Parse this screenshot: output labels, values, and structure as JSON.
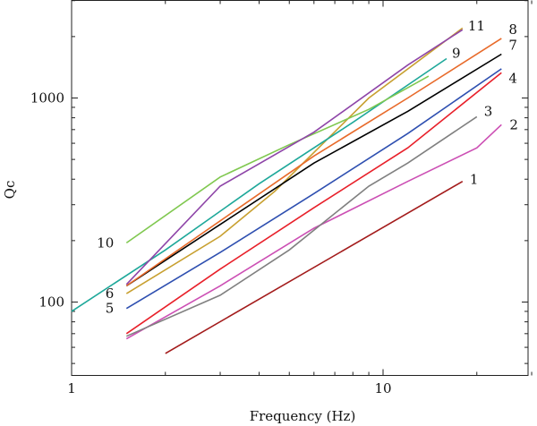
{
  "chart_data": {
    "type": "line",
    "title": "",
    "xlabel": "Frequency (Hz)",
    "ylabel": "Qc",
    "x_scale": "log",
    "y_scale": "log",
    "xlim": [
      1,
      30
    ],
    "ylim": [
      45,
      3000
    ],
    "x_ticks": [
      {
        "value": 1,
        "label": "1"
      },
      {
        "value": 10,
        "label": "10"
      }
    ],
    "y_ticks": [
      {
        "value": 100,
        "label": "100"
      },
      {
        "value": 1000,
        "label": "1000"
      }
    ],
    "grid": false,
    "series": [
      {
        "name": "1",
        "color": "#a31b1b",
        "x": [
          2,
          18
        ],
        "y": [
          56,
          390
        ]
      },
      {
        "name": "2",
        "color": "#cc4fb4",
        "x": [
          1.5,
          3,
          6,
          12,
          20,
          24
        ],
        "y": [
          66,
          120,
          230,
          390,
          570,
          740
        ]
      },
      {
        "name": "3",
        "color": "#808080",
        "x": [
          1.5,
          3,
          5,
          9,
          12,
          20
        ],
        "y": [
          68,
          108,
          180,
          370,
          480,
          810
        ]
      },
      {
        "name": "4",
        "color": "#e8202a",
        "x": [
          1.5,
          3,
          6,
          12,
          24
        ],
        "y": [
          70,
          145,
          290,
          570,
          1330
        ]
      },
      {
        "name": "5",
        "color": "#2e4fb0",
        "x": [
          1.5,
          3,
          6,
          12,
          24
        ],
        "y": [
          93,
          175,
          340,
          670,
          1390
        ]
      },
      {
        "name": "6",
        "color": "#c8a030",
        "x": [
          1.5,
          3,
          4.5,
          9,
          18
        ],
        "y": [
          110,
          210,
          350,
          1000,
          2200
        ]
      },
      {
        "name": "7",
        "color": "#000000",
        "x": [
          1.5,
          3,
          6,
          12,
          24
        ],
        "y": [
          120,
          240,
          480,
          860,
          1640
        ]
      },
      {
        "name": "8",
        "color": "#e86a2a",
        "x": [
          1.5,
          3,
          6,
          12,
          24
        ],
        "y": [
          120,
          250,
          520,
          1000,
          1960
        ]
      },
      {
        "name": "9",
        "color": "#1ea89a",
        "x": [
          1,
          2,
          4,
          8,
          16
        ],
        "y": [
          90,
          180,
          380,
          760,
          1560
        ]
      },
      {
        "name": "10",
        "color": "#80c850",
        "x": [
          1.5,
          3,
          5,
          9,
          14
        ],
        "y": [
          195,
          410,
          590,
          880,
          1280
        ]
      },
      {
        "name": "11",
        "color": "#8e45a8",
        "x": [
          1.5,
          3,
          6,
          12,
          18
        ],
        "y": [
          122,
          370,
          680,
          1450,
          2160
        ]
      }
    ],
    "label_positions_note": ""
  }
}
